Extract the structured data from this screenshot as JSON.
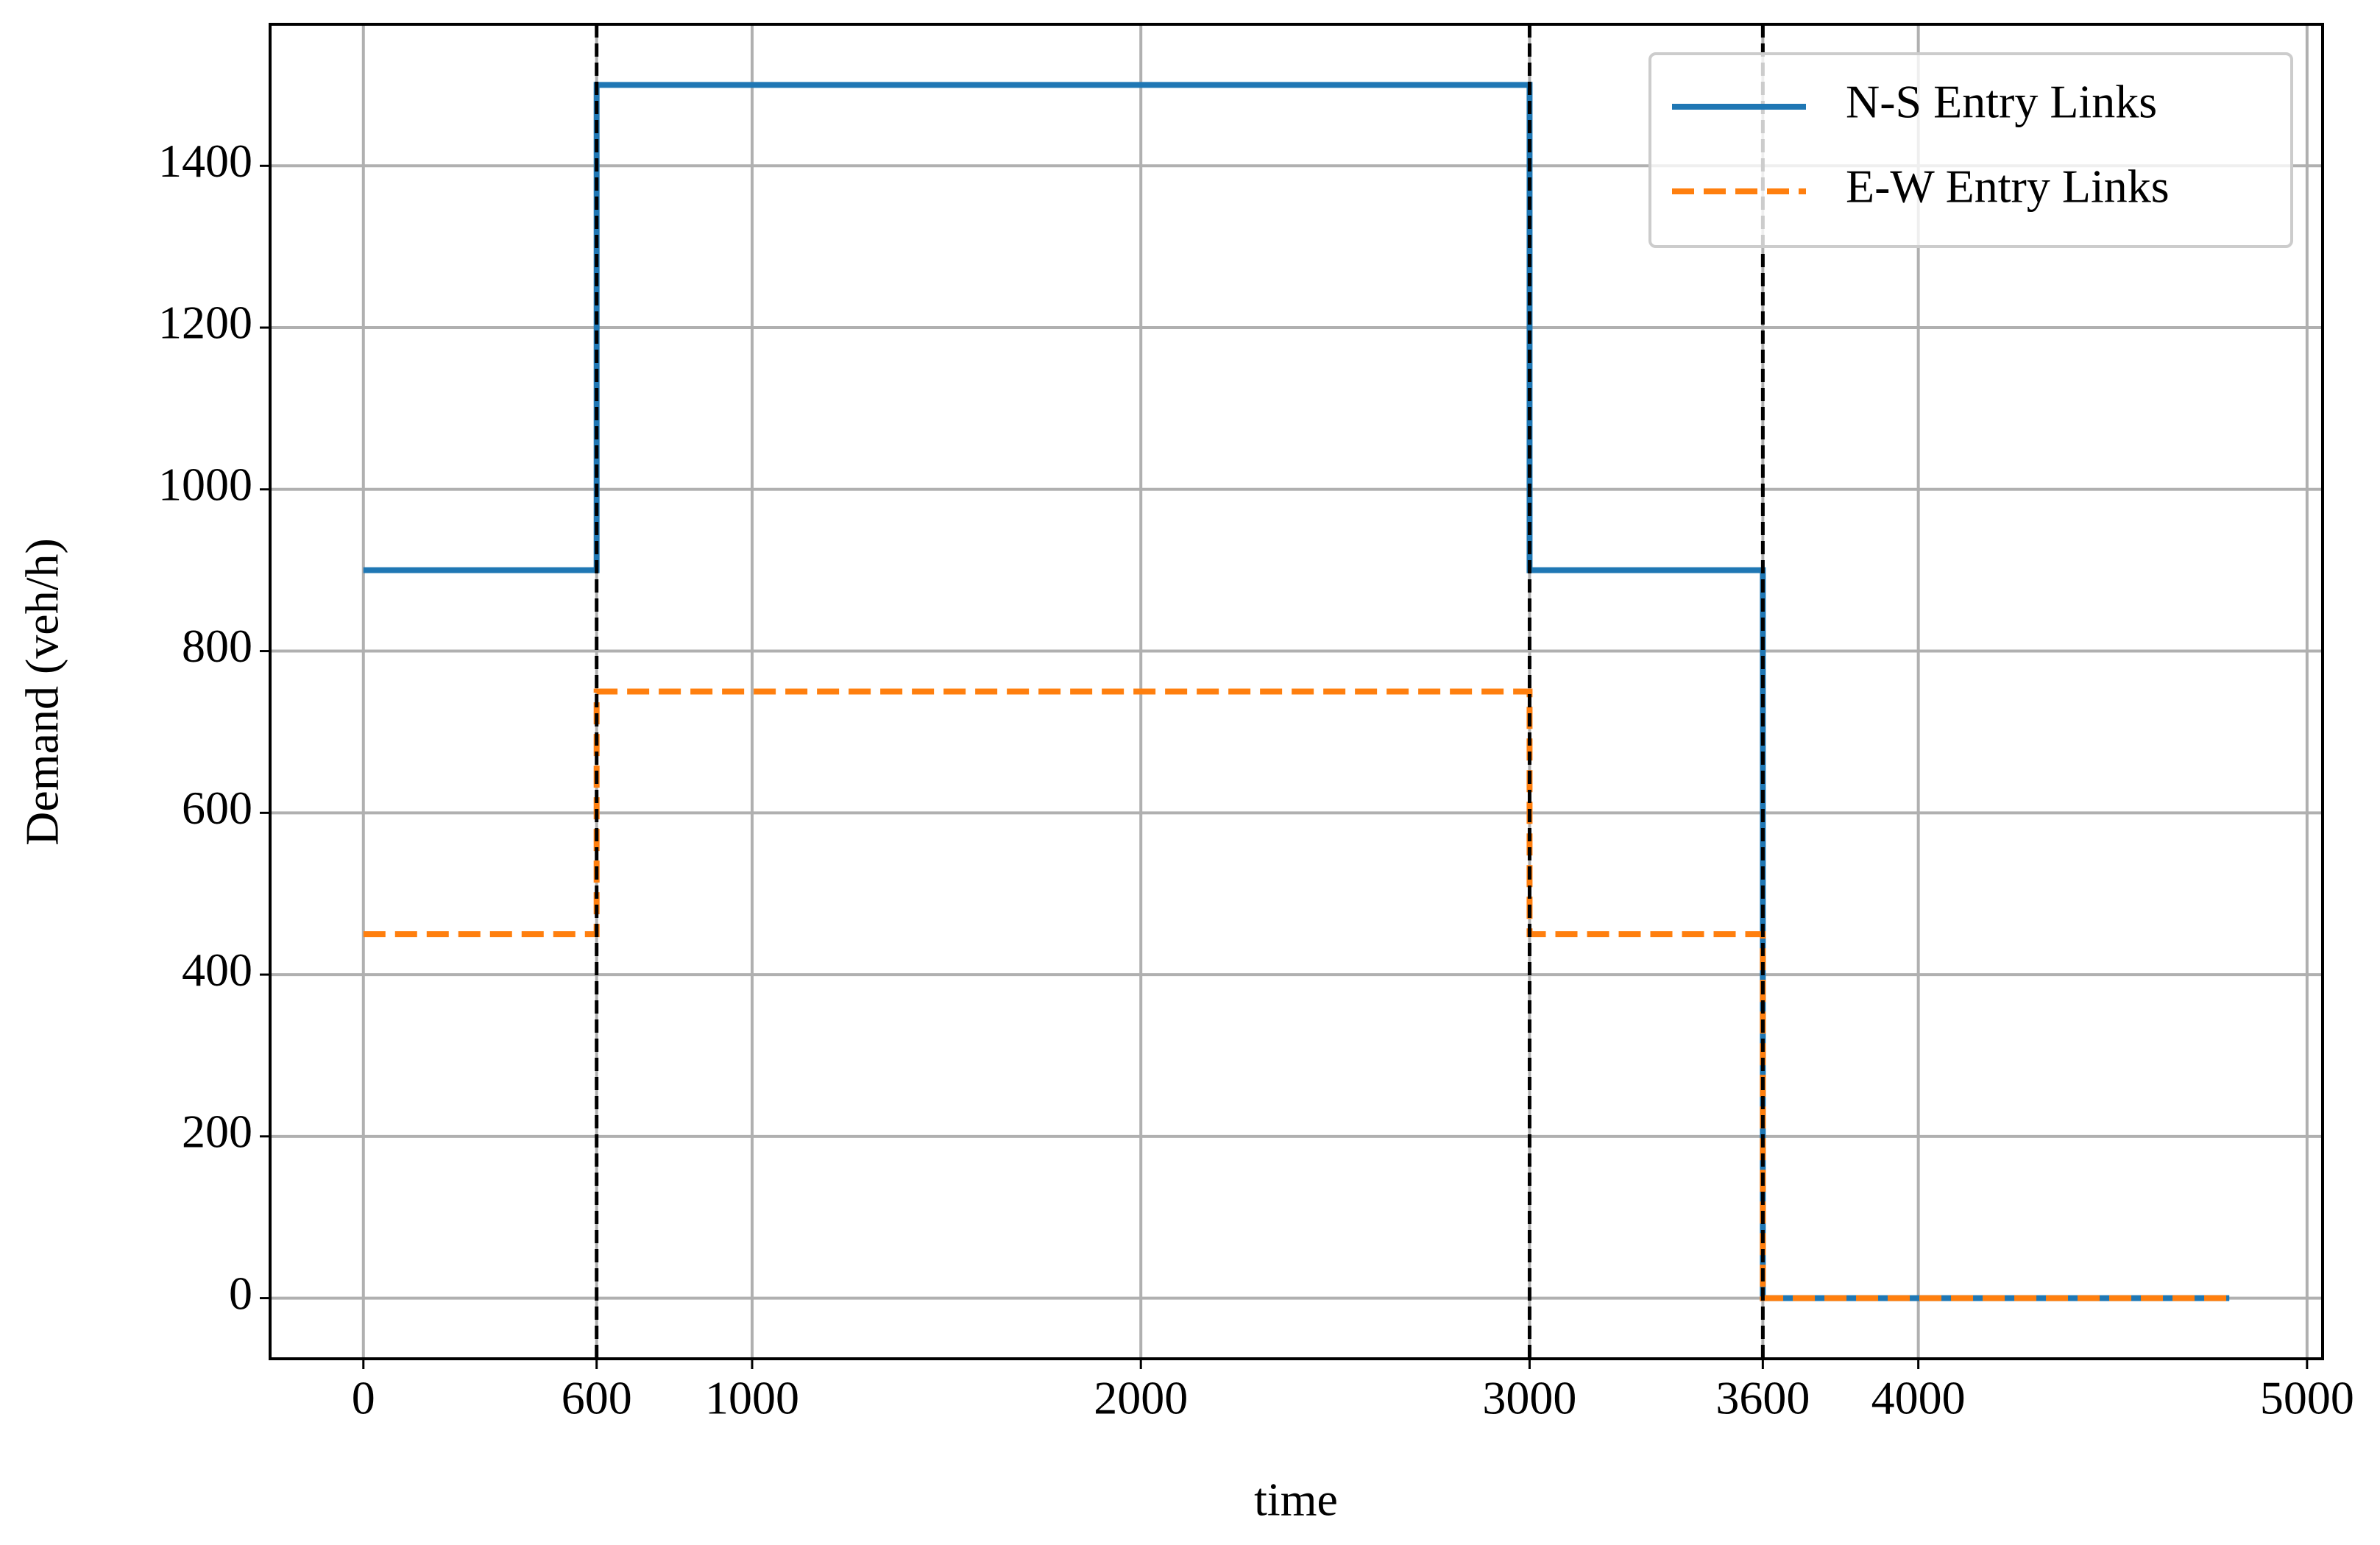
{
  "chart_data": {
    "type": "line",
    "xlabel": "time",
    "ylabel": "Demand (veh/h)",
    "x": [
      0,
      600,
      600,
      3000,
      3000,
      3600,
      3600,
      4800
    ],
    "series": [
      {
        "name": "N-S Entry Links",
        "color": "#1f77b4",
        "linestyle": "solid",
        "values": [
          900,
          900,
          1500,
          1500,
          900,
          900,
          0,
          0
        ]
      },
      {
        "name": "E-W Entry Links",
        "color": "#ff7f0e",
        "linestyle": "dashed",
        "values": [
          450,
          450,
          750,
          750,
          450,
          450,
          0,
          0
        ]
      }
    ],
    "vlines": [
      600,
      3000,
      3600
    ],
    "vline_color": "#000000",
    "xlim": [
      -240,
      5040
    ],
    "xticks": [
      0,
      600,
      1000,
      2000,
      3000,
      3600,
      4000,
      5000
    ],
    "ylim": [
      -75,
      1575
    ],
    "yticks": [
      0,
      200,
      400,
      600,
      800,
      1000,
      1200,
      1400
    ],
    "grid": true,
    "legend": "upper right"
  }
}
